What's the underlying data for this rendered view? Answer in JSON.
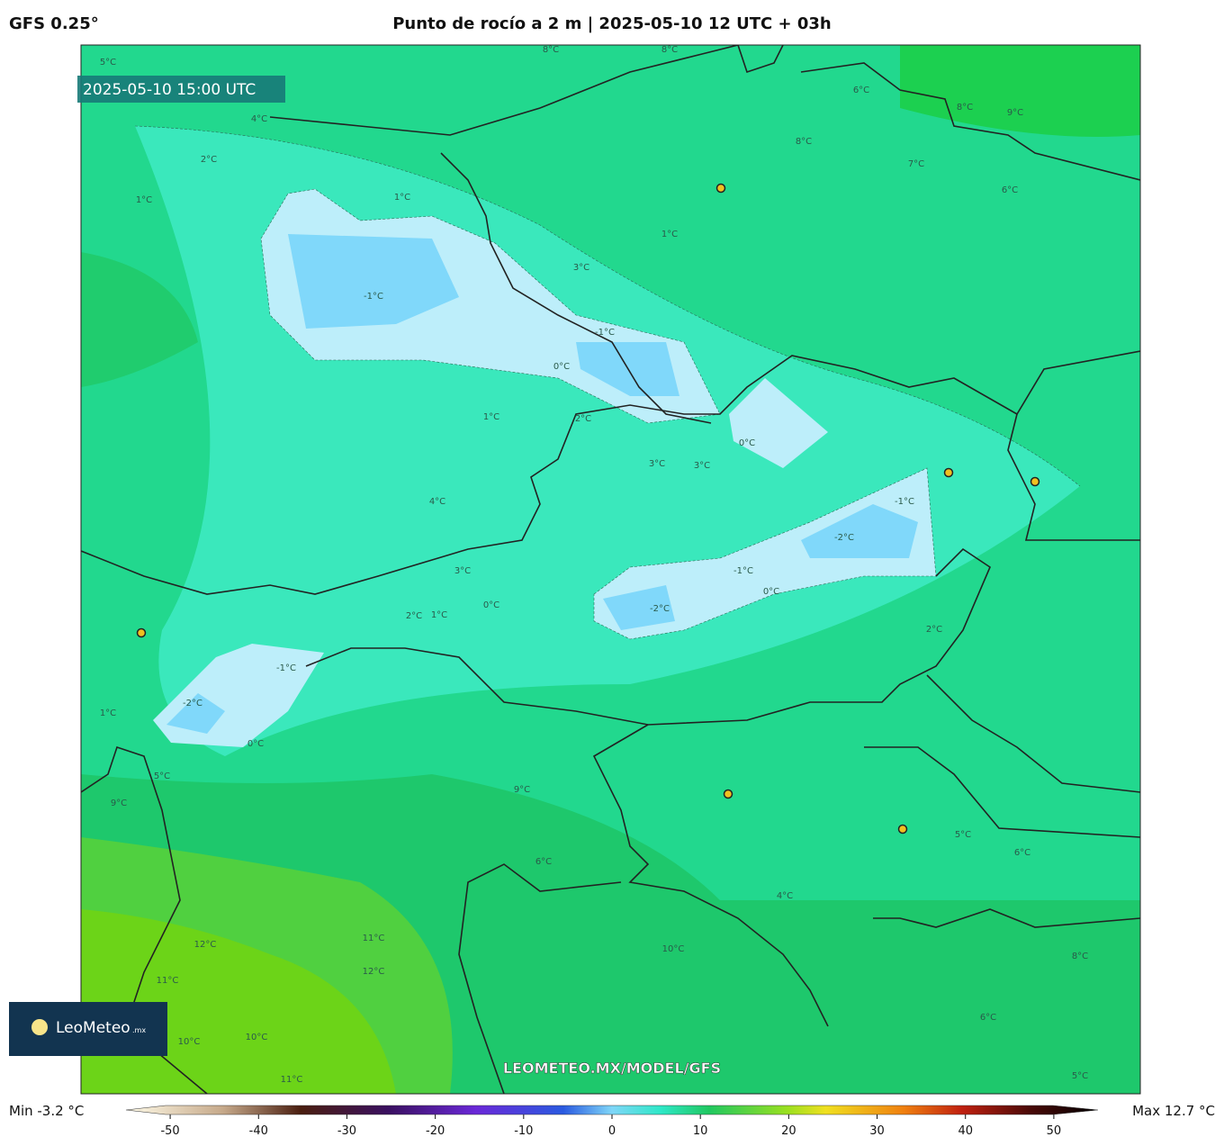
{
  "header": {
    "model": "GFS 0.25°",
    "title": "Punto de rocío a 2 m | 2025-05-10 12 UTC + 03h"
  },
  "map": {
    "valid_time": "2025-05-10 15:00 UTC",
    "watermark": "LEOMETEO.MX/MODEL/GFS",
    "contour_labels": [
      "5°C",
      "4°C",
      "2°C",
      "1°C",
      "8°C",
      "8°C",
      "6°C",
      "8°C",
      "9°C",
      "8°C",
      "7°C",
      "6°C",
      "1°C",
      "-1°C",
      "3°C",
      "1°C",
      "-1°C",
      "0°C",
      "1°C",
      "2°C",
      "0°C",
      "3°C",
      "3°C",
      "4°C",
      "-1°C",
      "-2°C",
      "-1°C",
      "-2°C",
      "0°C",
      "2°C",
      "3°C",
      "2°C",
      "1°C",
      "0°C",
      "-1°C",
      "-2°C",
      "0°C",
      "1°C",
      "5°C",
      "9°C",
      "9°C",
      "6°C",
      "4°C",
      "5°C",
      "6°C",
      "10°C",
      "11°C",
      "12°C",
      "12°C",
      "11°C",
      "10°C",
      "10°C",
      "11°C",
      "8°C",
      "6°C",
      "5°C"
    ]
  },
  "logo": {
    "name": "LeoMeteo",
    "suffix": ".mx"
  },
  "colorbar": {
    "min_label": "Min -3.2 °C",
    "max_label": "Max 12.7 °C",
    "range": [
      -55,
      55
    ],
    "ticks": [
      -50,
      -40,
      -30,
      -20,
      -10,
      0,
      10,
      20,
      30,
      40,
      50
    ]
  }
}
